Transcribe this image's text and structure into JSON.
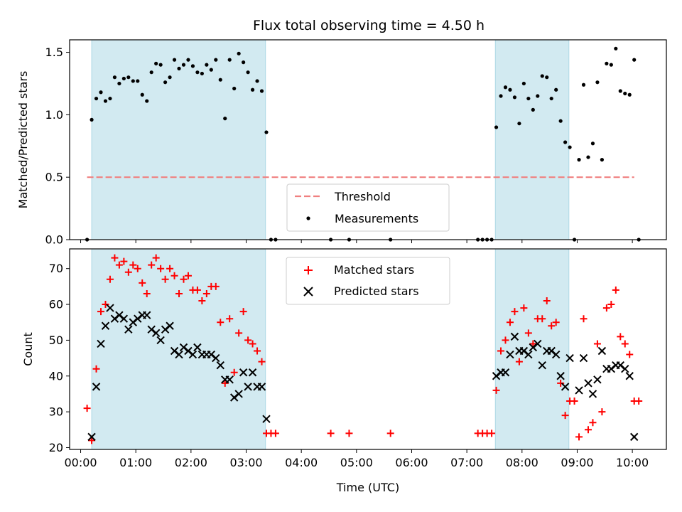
{
  "title": "Flux total observing time = 4.50 h",
  "chart_data": [
    {
      "type": "scatter",
      "panel": "top",
      "ylabel": "Matched/Predicted stars",
      "xlim": [
        "23:48",
        "10:37"
      ],
      "ylim": [
        0,
        1.6
      ],
      "yticks": [
        "0.0",
        "0.5",
        "1.0",
        "1.5"
      ],
      "shaded_regions": [
        [
          "00:12",
          "03:21"
        ],
        [
          "07:31",
          "08:51"
        ]
      ],
      "shade_color": "#add8e6",
      "threshold": {
        "name": "Threshold",
        "value": 0.5,
        "x": [
          "00:07",
          "10:02"
        ],
        "color": "#f08080",
        "style": "dashed"
      },
      "series": [
        {
          "name": "Measurements",
          "color": "#000000",
          "marker": "dot",
          "points": [
            [
              "00:07",
              0.0
            ],
            [
              "00:12",
              0.96
            ],
            [
              "00:17",
              1.13
            ],
            [
              "00:22",
              1.18
            ],
            [
              "00:27",
              1.11
            ],
            [
              "00:32",
              1.13
            ],
            [
              "00:37",
              1.3
            ],
            [
              "00:42",
              1.25
            ],
            [
              "00:47",
              1.29
            ],
            [
              "00:52",
              1.3
            ],
            [
              "00:57",
              1.27
            ],
            [
              "01:02",
              1.27
            ],
            [
              "01:07",
              1.16
            ],
            [
              "01:12",
              1.11
            ],
            [
              "01:17",
              1.34
            ],
            [
              "01:22",
              1.41
            ],
            [
              "01:27",
              1.4
            ],
            [
              "01:32",
              1.26
            ],
            [
              "01:37",
              1.3
            ],
            [
              "01:42",
              1.44
            ],
            [
              "01:47",
              1.37
            ],
            [
              "01:52",
              1.4
            ],
            [
              "01:57",
              1.44
            ],
            [
              "02:02",
              1.39
            ],
            [
              "02:07",
              1.34
            ],
            [
              "02:12",
              1.33
            ],
            [
              "02:17",
              1.4
            ],
            [
              "02:22",
              1.36
            ],
            [
              "02:27",
              1.44
            ],
            [
              "02:32",
              1.28
            ],
            [
              "02:37",
              0.97
            ],
            [
              "02:42",
              1.44
            ],
            [
              "02:47",
              1.21
            ],
            [
              "02:52",
              1.49
            ],
            [
              "02:57",
              1.42
            ],
            [
              "03:02",
              1.34
            ],
            [
              "03:07",
              1.2
            ],
            [
              "03:12",
              1.27
            ],
            [
              "03:17",
              1.19
            ],
            [
              "03:22",
              0.86
            ],
            [
              "03:27",
              0.0
            ],
            [
              "03:32",
              0.0
            ],
            [
              "04:32",
              0.0
            ],
            [
              "04:52",
              0.0
            ],
            [
              "05:37",
              0.0
            ],
            [
              "07:12",
              0.0
            ],
            [
              "07:17",
              0.0
            ],
            [
              "07:22",
              0.0
            ],
            [
              "07:27",
              0.0
            ],
            [
              "07:32",
              0.9
            ],
            [
              "07:37",
              1.15
            ],
            [
              "07:42",
              1.22
            ],
            [
              "07:47",
              1.2
            ],
            [
              "07:52",
              1.14
            ],
            [
              "07:57",
              0.93
            ],
            [
              "08:02",
              1.25
            ],
            [
              "08:07",
              1.13
            ],
            [
              "08:12",
              1.04
            ],
            [
              "08:17",
              1.15
            ],
            [
              "08:22",
              1.31
            ],
            [
              "08:27",
              1.3
            ],
            [
              "08:32",
              1.13
            ],
            [
              "08:37",
              1.2
            ],
            [
              "08:42",
              0.95
            ],
            [
              "08:47",
              0.78
            ],
            [
              "08:52",
              0.74
            ],
            [
              "08:57",
              0.0
            ],
            [
              "09:02",
              0.64
            ],
            [
              "09:07",
              1.24
            ],
            [
              "09:12",
              0.66
            ],
            [
              "09:17",
              0.77
            ],
            [
              "09:22",
              1.26
            ],
            [
              "09:27",
              0.64
            ],
            [
              "09:32",
              1.41
            ],
            [
              "09:37",
              1.4
            ],
            [
              "09:42",
              1.53
            ],
            [
              "09:47",
              1.19
            ],
            [
              "09:52",
              1.17
            ],
            [
              "09:57",
              1.16
            ],
            [
              "10:02",
              1.44
            ],
            [
              "10:07",
              0.0
            ]
          ]
        }
      ]
    },
    {
      "type": "scatter",
      "panel": "bottom",
      "xlabel": "Time (UTC)",
      "ylabel": "Count",
      "xlim": [
        "23:48",
        "10:37"
      ],
      "ylim": [
        19.5,
        75.5
      ],
      "yticks": [
        "20",
        "30",
        "40",
        "50",
        "60",
        "70"
      ],
      "xticks": [
        "00:00",
        "01:00",
        "02:00",
        "03:00",
        "04:00",
        "05:00",
        "06:00",
        "07:00",
        "08:00",
        "09:00",
        "10:00"
      ],
      "shaded_regions": [
        [
          "00:12",
          "03:21"
        ],
        [
          "07:31",
          "08:51"
        ]
      ],
      "series": [
        {
          "name": "Matched stars",
          "color": "#ff0000",
          "marker": "plus",
          "points": [
            [
              "00:07",
              31
            ],
            [
              "00:12",
              22
            ],
            [
              "00:17",
              42
            ],
            [
              "00:22",
              58
            ],
            [
              "00:27",
              60
            ],
            [
              "00:32",
              67
            ],
            [
              "00:37",
              73
            ],
            [
              "00:42",
              71
            ],
            [
              "00:47",
              72
            ],
            [
              "00:52",
              69
            ],
            [
              "00:57",
              71
            ],
            [
              "01:02",
              70
            ],
            [
              "01:07",
              66
            ],
            [
              "01:12",
              63
            ],
            [
              "01:17",
              71
            ],
            [
              "01:22",
              73
            ],
            [
              "01:27",
              70
            ],
            [
              "01:32",
              67
            ],
            [
              "01:37",
              70
            ],
            [
              "01:42",
              68
            ],
            [
              "01:47",
              63
            ],
            [
              "01:52",
              67
            ],
            [
              "01:57",
              68
            ],
            [
              "02:02",
              64
            ],
            [
              "02:07",
              64
            ],
            [
              "02:12",
              61
            ],
            [
              "02:17",
              63
            ],
            [
              "02:22",
              65
            ],
            [
              "02:27",
              65
            ],
            [
              "02:32",
              55
            ],
            [
              "02:37",
              38
            ],
            [
              "02:42",
              56
            ],
            [
              "02:47",
              41
            ],
            [
              "02:52",
              52
            ],
            [
              "02:57",
              58
            ],
            [
              "03:02",
              50
            ],
            [
              "03:07",
              49
            ],
            [
              "03:12",
              47
            ],
            [
              "03:17",
              44
            ],
            [
              "03:22",
              24
            ],
            [
              "03:27",
              24
            ],
            [
              "03:32",
              24
            ],
            [
              "04:32",
              24
            ],
            [
              "04:52",
              24
            ],
            [
              "05:37",
              24
            ],
            [
              "07:12",
              24
            ],
            [
              "07:17",
              24
            ],
            [
              "07:22",
              24
            ],
            [
              "07:27",
              24
            ],
            [
              "07:32",
              36
            ],
            [
              "07:37",
              47
            ],
            [
              "07:42",
              50
            ],
            [
              "07:47",
              55
            ],
            [
              "07:52",
              58
            ],
            [
              "07:57",
              44
            ],
            [
              "08:02",
              59
            ],
            [
              "08:07",
              52
            ],
            [
              "08:12",
              49
            ],
            [
              "08:17",
              56
            ],
            [
              "08:22",
              56
            ],
            [
              "08:27",
              61
            ],
            [
              "08:32",
              54
            ],
            [
              "08:37",
              55
            ],
            [
              "08:42",
              38
            ],
            [
              "08:47",
              29
            ],
            [
              "08:52",
              33
            ],
            [
              "08:57",
              33
            ],
            [
              "09:02",
              23
            ],
            [
              "09:07",
              56
            ],
            [
              "09:12",
              25
            ],
            [
              "09:17",
              27
            ],
            [
              "09:22",
              49
            ],
            [
              "09:27",
              30
            ],
            [
              "09:32",
              59
            ],
            [
              "09:37",
              60
            ],
            [
              "09:42",
              64
            ],
            [
              "09:47",
              51
            ],
            [
              "09:52",
              49
            ],
            [
              "09:57",
              46
            ],
            [
              "10:02",
              33
            ],
            [
              "10:07",
              33
            ]
          ]
        },
        {
          "name": "Predicted stars",
          "color": "#000000",
          "marker": "x",
          "points": [
            [
              "00:12",
              23
            ],
            [
              "00:17",
              37
            ],
            [
              "00:22",
              49
            ],
            [
              "00:27",
              54
            ],
            [
              "00:32",
              59
            ],
            [
              "00:37",
              56
            ],
            [
              "00:42",
              57
            ],
            [
              "00:47",
              56
            ],
            [
              "00:52",
              53
            ],
            [
              "00:57",
              55
            ],
            [
              "01:02",
              56
            ],
            [
              "01:07",
              57
            ],
            [
              "01:12",
              57
            ],
            [
              "01:17",
              53
            ],
            [
              "01:22",
              52
            ],
            [
              "01:27",
              50
            ],
            [
              "01:32",
              53
            ],
            [
              "01:37",
              54
            ],
            [
              "01:42",
              47
            ],
            [
              "01:47",
              46
            ],
            [
              "01:52",
              48
            ],
            [
              "01:57",
              47
            ],
            [
              "02:02",
              46
            ],
            [
              "02:07",
              48
            ],
            [
              "02:12",
              46
            ],
            [
              "02:17",
              46
            ],
            [
              "02:22",
              46
            ],
            [
              "02:27",
              45
            ],
            [
              "02:32",
              43
            ],
            [
              "02:37",
              39
            ],
            [
              "02:42",
              39
            ],
            [
              "02:47",
              34
            ],
            [
              "02:52",
              35
            ],
            [
              "02:57",
              41
            ],
            [
              "03:02",
              37
            ],
            [
              "03:07",
              41
            ],
            [
              "03:12",
              37
            ],
            [
              "03:17",
              37
            ],
            [
              "03:22",
              28
            ],
            [
              "07:32",
              40
            ],
            [
              "07:37",
              41
            ],
            [
              "07:42",
              41
            ],
            [
              "07:47",
              46
            ],
            [
              "07:52",
              51
            ],
            [
              "07:57",
              47
            ],
            [
              "08:02",
              47
            ],
            [
              "08:07",
              46
            ],
            [
              "08:12",
              48
            ],
            [
              "08:17",
              49
            ],
            [
              "08:22",
              43
            ],
            [
              "08:27",
              47
            ],
            [
              "08:32",
              47
            ],
            [
              "08:37",
              46
            ],
            [
              "08:42",
              40
            ],
            [
              "08:47",
              37
            ],
            [
              "08:52",
              45
            ],
            [
              "09:02",
              36
            ],
            [
              "09:07",
              45
            ],
            [
              "09:12",
              38
            ],
            [
              "09:17",
              35
            ],
            [
              "09:22",
              39
            ],
            [
              "09:27",
              47
            ],
            [
              "09:32",
              42
            ],
            [
              "09:37",
              42
            ],
            [
              "09:42",
              43
            ],
            [
              "09:47",
              43
            ],
            [
              "09:52",
              42
            ],
            [
              "09:57",
              40
            ],
            [
              "10:02",
              23
            ]
          ]
        }
      ]
    }
  ]
}
